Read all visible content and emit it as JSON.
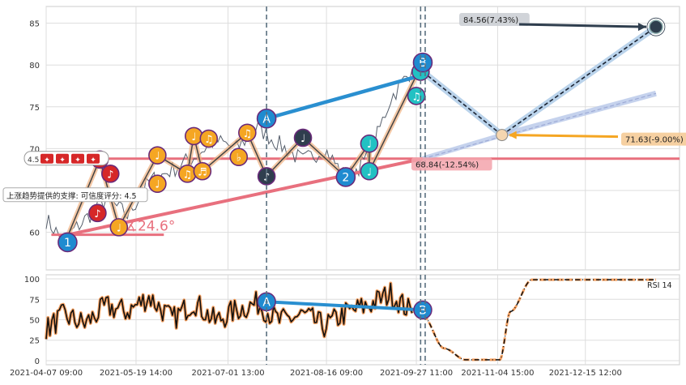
{
  "chart_data": [
    {
      "type": "line",
      "panel": "price",
      "ylim": [
        55.5,
        87
      ],
      "yticks": [
        60,
        65,
        70,
        75,
        80,
        85
      ],
      "grid": true,
      "series": [
        {
          "name": "",
          "x": [
            "2021-04-07",
            "2021-04-15",
            "2021-04-25",
            "2021-05-05",
            "2021-05-15",
            "2021-05-25",
            "2021-06-05",
            "2021-06-15",
            "2021-06-25",
            "2021-07-05",
            "2021-07-15",
            "2021-07-25",
            "2021-08-05",
            "2021-08-15",
            "2021-08-25",
            "2021-09-05",
            "2021-09-15",
            "2021-09-25"
          ],
          "values": [
            61.5,
            59.0,
            61.5,
            64.0,
            62.0,
            66.0,
            67.5,
            69.0,
            71.0,
            70.0,
            72.5,
            70.5,
            68.5,
            70.0,
            66.5,
            69.0,
            76.0,
            79.5
          ]
        }
      ],
      "waves": [
        {
          "label": "1",
          "x": "2021-04-17",
          "y": 58.8
        },
        {
          "label": "A",
          "x": "2021-07-19",
          "y": 73.6
        },
        {
          "label": "2",
          "x": "2021-08-25",
          "y": 66.6
        },
        {
          "label": "B",
          "x": "2021-09-30",
          "y": 80.3
        }
      ],
      "note_markers": [
        {
          "glyph": "♪",
          "x": "2021-05-01",
          "y": 62.3,
          "color": "#d62728"
        },
        {
          "glyph": "♪",
          "x": "2021-05-02",
          "y": 68.7,
          "color": "#d62728"
        },
        {
          "glyph": "♪",
          "x": "2021-05-07",
          "y": 67.0,
          "color": "#d62728"
        },
        {
          "glyph": "♩",
          "x": "2021-05-11",
          "y": 60.6,
          "color": "#f5a623"
        },
        {
          "glyph": "♩",
          "x": "2021-05-29",
          "y": 65.8,
          "color": "#f5a623"
        },
        {
          "glyph": "♩",
          "x": "2021-05-29",
          "y": 69.2,
          "color": "#f5a623"
        },
        {
          "glyph": "♫",
          "x": "2021-06-12",
          "y": 67.0,
          "color": "#f5a623"
        },
        {
          "glyph": "♩",
          "x": "2021-06-15",
          "y": 71.5,
          "color": "#f5a623"
        },
        {
          "glyph": "♬",
          "x": "2021-06-19",
          "y": 67.3,
          "color": "#f5a623"
        },
        {
          "glyph": "♫",
          "x": "2021-06-22",
          "y": 71.2,
          "color": "#f5a623"
        },
        {
          "glyph": "♭",
          "x": "2021-07-06",
          "y": 69.0,
          "color": "#f5a623"
        },
        {
          "glyph": "♫",
          "x": "2021-07-10",
          "y": 71.9,
          "color": "#f5a623"
        },
        {
          "glyph": "♪",
          "x": "2021-07-19",
          "y": 66.7,
          "color": "#2f3e4e"
        },
        {
          "glyph": "♩",
          "x": "2021-08-05",
          "y": 71.3,
          "color": "#2f3e4e"
        },
        {
          "glyph": "♩",
          "x": "2021-09-05",
          "y": 70.6,
          "color": "#22c1c3"
        },
        {
          "glyph": "♩",
          "x": "2021-09-05",
          "y": 67.3,
          "color": "#22c1c3"
        },
        {
          "glyph": "♫",
          "x": "2021-09-27",
          "y": 76.3,
          "color": "#22c1c3"
        },
        {
          "glyph": "",
          "x": "2021-09-29",
          "y": 79.2,
          "color": "#22c1c3"
        }
      ],
      "horizontal_line": {
        "y": 68.8,
        "color": "#e8707e"
      },
      "trend_support": {
        "x0": "2021-04-17",
        "y0": 59.7,
        "x1": "2021-09-30",
        "y1": 68.8,
        "angle_label": "∡24.6°"
      },
      "projections": [
        {
          "label": "84.56(7.43%)",
          "x": "2022-01-17",
          "y": 84.56,
          "color": "#2f3e4e"
        },
        {
          "label": "71.63(-9.00%)",
          "x": "2021-11-06",
          "y": 71.63,
          "color": "#f5a623"
        },
        {
          "label": "68.84(-12.54%)",
          "x": "2021-09-30",
          "y": 68.84,
          "color": "#e8707e"
        }
      ],
      "projection_fan_end": {
        "x": "2022-01-17",
        "y": 76.6
      },
      "support_label": "上涨趋势提供的支撑: 可信度评分: 4.5",
      "rating_label": "4.5",
      "rating_stars": 4,
      "vlines": [
        "2021-07-19",
        "2021-09-29",
        "2021-09-30"
      ]
    },
    {
      "type": "line",
      "panel": "rsi",
      "ylim": [
        -5,
        105
      ],
      "yticks": [
        0,
        25,
        50,
        75,
        100
      ],
      "legend": "RSI 14",
      "x_ticks": [
        "2021-04-07 09:00",
        "2021-05-19 14:00",
        "2021-07-01 13:00",
        "2021-08-16 09:00",
        "2021-09-27 11:00",
        "2021-11-04 15:00",
        "2021-12-15 12:00"
      ],
      "series": [
        {
          "name": "RSI 14",
          "x": [
            "2021-04-07",
            "2021-04-15",
            "2021-04-25",
            "2021-05-05",
            "2021-05-15",
            "2021-05-25",
            "2021-06-05",
            "2021-06-15",
            "2021-06-25",
            "2021-07-05",
            "2021-07-15",
            "2021-07-25",
            "2021-08-05",
            "2021-08-15",
            "2021-08-25",
            "2021-09-05",
            "2021-09-15",
            "2021-09-25"
          ],
          "values": [
            38,
            55,
            45,
            66,
            60,
            78,
            50,
            72,
            48,
            62,
            70,
            48,
            56,
            42,
            58,
            68,
            82,
            58
          ]
        },
        {
          "name": "",
          "x": [
            "2021-09-30",
            "2021-10-10",
            "2021-10-20",
            "2021-11-05",
            "2021-11-10",
            "2021-11-20",
            "2022-01-17"
          ],
          "values": [
            55,
            15,
            1,
            1,
            60,
            99,
            99
          ]
        }
      ],
      "divergence": [
        {
          "label": "A",
          "x": "2021-07-19",
          "y": 72
        },
        {
          "label": "B",
          "x": "2021-09-30",
          "y": 62
        }
      ]
    }
  ]
}
